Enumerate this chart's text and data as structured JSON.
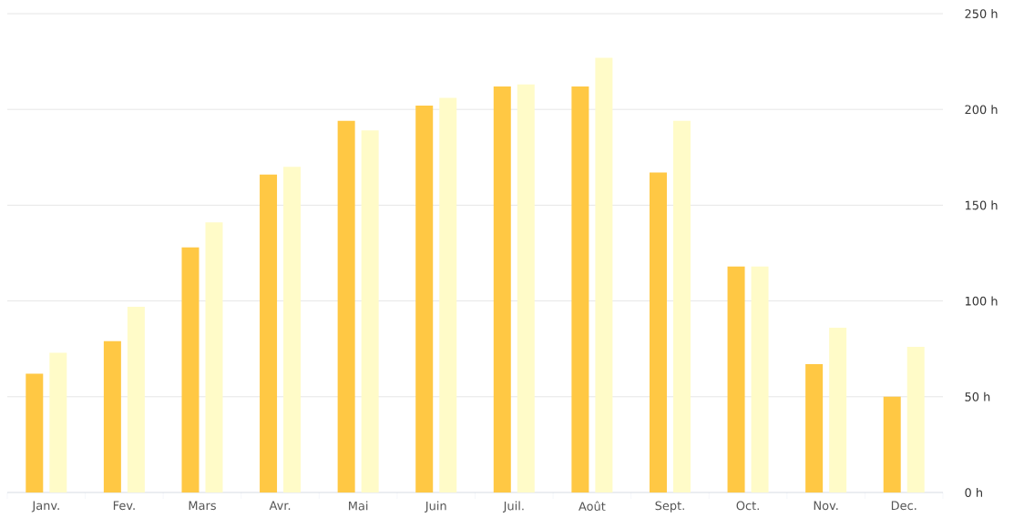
{
  "chart_data": {
    "type": "bar",
    "categories": [
      "Janv.",
      "Fev.",
      "Mars",
      "Avr.",
      "Mai",
      "Juin",
      "Juil.",
      "Août",
      "Sept.",
      "Oct.",
      "Nov.",
      "Dec."
    ],
    "series": [
      {
        "color": "#ffc844",
        "values": [
          62,
          79,
          128,
          166,
          194,
          202,
          212,
          212,
          167,
          118,
          67,
          50
        ]
      },
      {
        "color": "#fffbc8",
        "values": [
          73,
          97,
          141,
          170,
          189,
          206,
          213,
          227,
          194,
          118,
          86,
          76
        ]
      }
    ],
    "ylim": [
      0,
      250
    ],
    "yticks": [
      {
        "value": 0,
        "label": "0 h"
      },
      {
        "value": 50,
        "label": "50 h"
      },
      {
        "value": 100,
        "label": "100 h"
      },
      {
        "value": 150,
        "label": "150 h"
      },
      {
        "value": 200,
        "label": "200 h"
      },
      {
        "value": 250,
        "label": "250 h"
      }
    ],
    "grid": "y"
  }
}
